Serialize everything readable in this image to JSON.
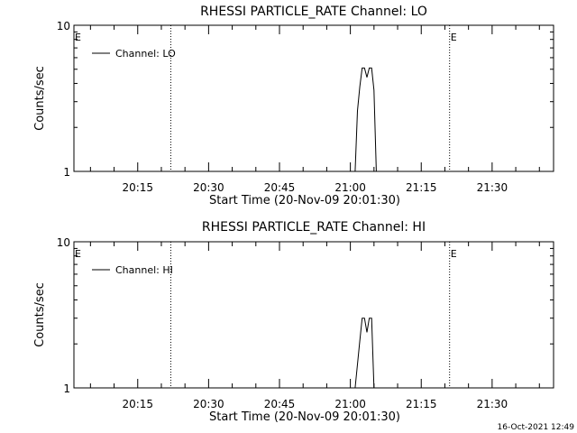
{
  "chart_data": [
    {
      "type": "line",
      "title": "RHESSI PARTICLE_RATE Channel: LO",
      "xlabel": "Start Time (20-Nov-09 20:01:30)",
      "ylabel": "Counts/sec",
      "ylim": [
        1,
        10
      ],
      "yscale": "log",
      "ytick_labels": [
        "1",
        "10"
      ],
      "xlim": [
        "20:01:30",
        "21:43:00"
      ],
      "xtick_labels": [
        "20:15",
        "20:30",
        "20:45",
        "21:00",
        "21:15",
        "21:30"
      ],
      "grid": false,
      "legend": "top-left",
      "series": [
        {
          "name": "Channel: LO",
          "x": [
            "20:01:30",
            "21:01:00",
            "21:01:30",
            "21:02:00",
            "21:02:30",
            "21:03:00",
            "21:03:30",
            "21:04:00",
            "21:04:30",
            "21:05:00",
            "21:05:30",
            "21:06:00"
          ],
          "y": [
            1,
            1,
            2.6,
            3.8,
            5.1,
            5.1,
            4.4,
            5.1,
            5.1,
            3.6,
            1,
            1
          ]
        }
      ],
      "markers": [
        {
          "label": "E",
          "x": "20:01:30"
        },
        {
          "label": "E",
          "x": "21:21:00"
        }
      ],
      "vlines": [
        "20:22:00",
        "21:21:00",
        "21:43:00"
      ]
    },
    {
      "type": "line",
      "title": "RHESSI PARTICLE_RATE Channel: HI",
      "xlabel": "Start Time (20-Nov-09 20:01:30)",
      "ylabel": "Counts/sec",
      "ylim": [
        1,
        10
      ],
      "yscale": "log",
      "ytick_labels": [
        "1",
        "10"
      ],
      "xlim": [
        "20:01:30",
        "21:43:00"
      ],
      "xtick_labels": [
        "20:15",
        "20:30",
        "20:45",
        "21:00",
        "21:15",
        "21:30"
      ],
      "grid": false,
      "legend": "top-left",
      "series": [
        {
          "name": "Channel: HI",
          "x": [
            "20:01:30",
            "21:01:00",
            "21:02:00",
            "21:02:30",
            "21:03:00",
            "21:03:30",
            "21:04:00",
            "21:04:30",
            "21:05:00",
            "21:05:30"
          ],
          "y": [
            1,
            1,
            2.1,
            3.0,
            3.0,
            2.4,
            3.0,
            3.0,
            1,
            1
          ]
        }
      ],
      "markers": [
        {
          "label": "E",
          "x": "20:01:30"
        },
        {
          "label": "E",
          "x": "21:21:00"
        }
      ],
      "vlines": [
        "20:22:00",
        "21:21:00",
        "21:43:00"
      ]
    }
  ],
  "footer": {
    "timestamp": "16-Oct-2021 12:49"
  }
}
